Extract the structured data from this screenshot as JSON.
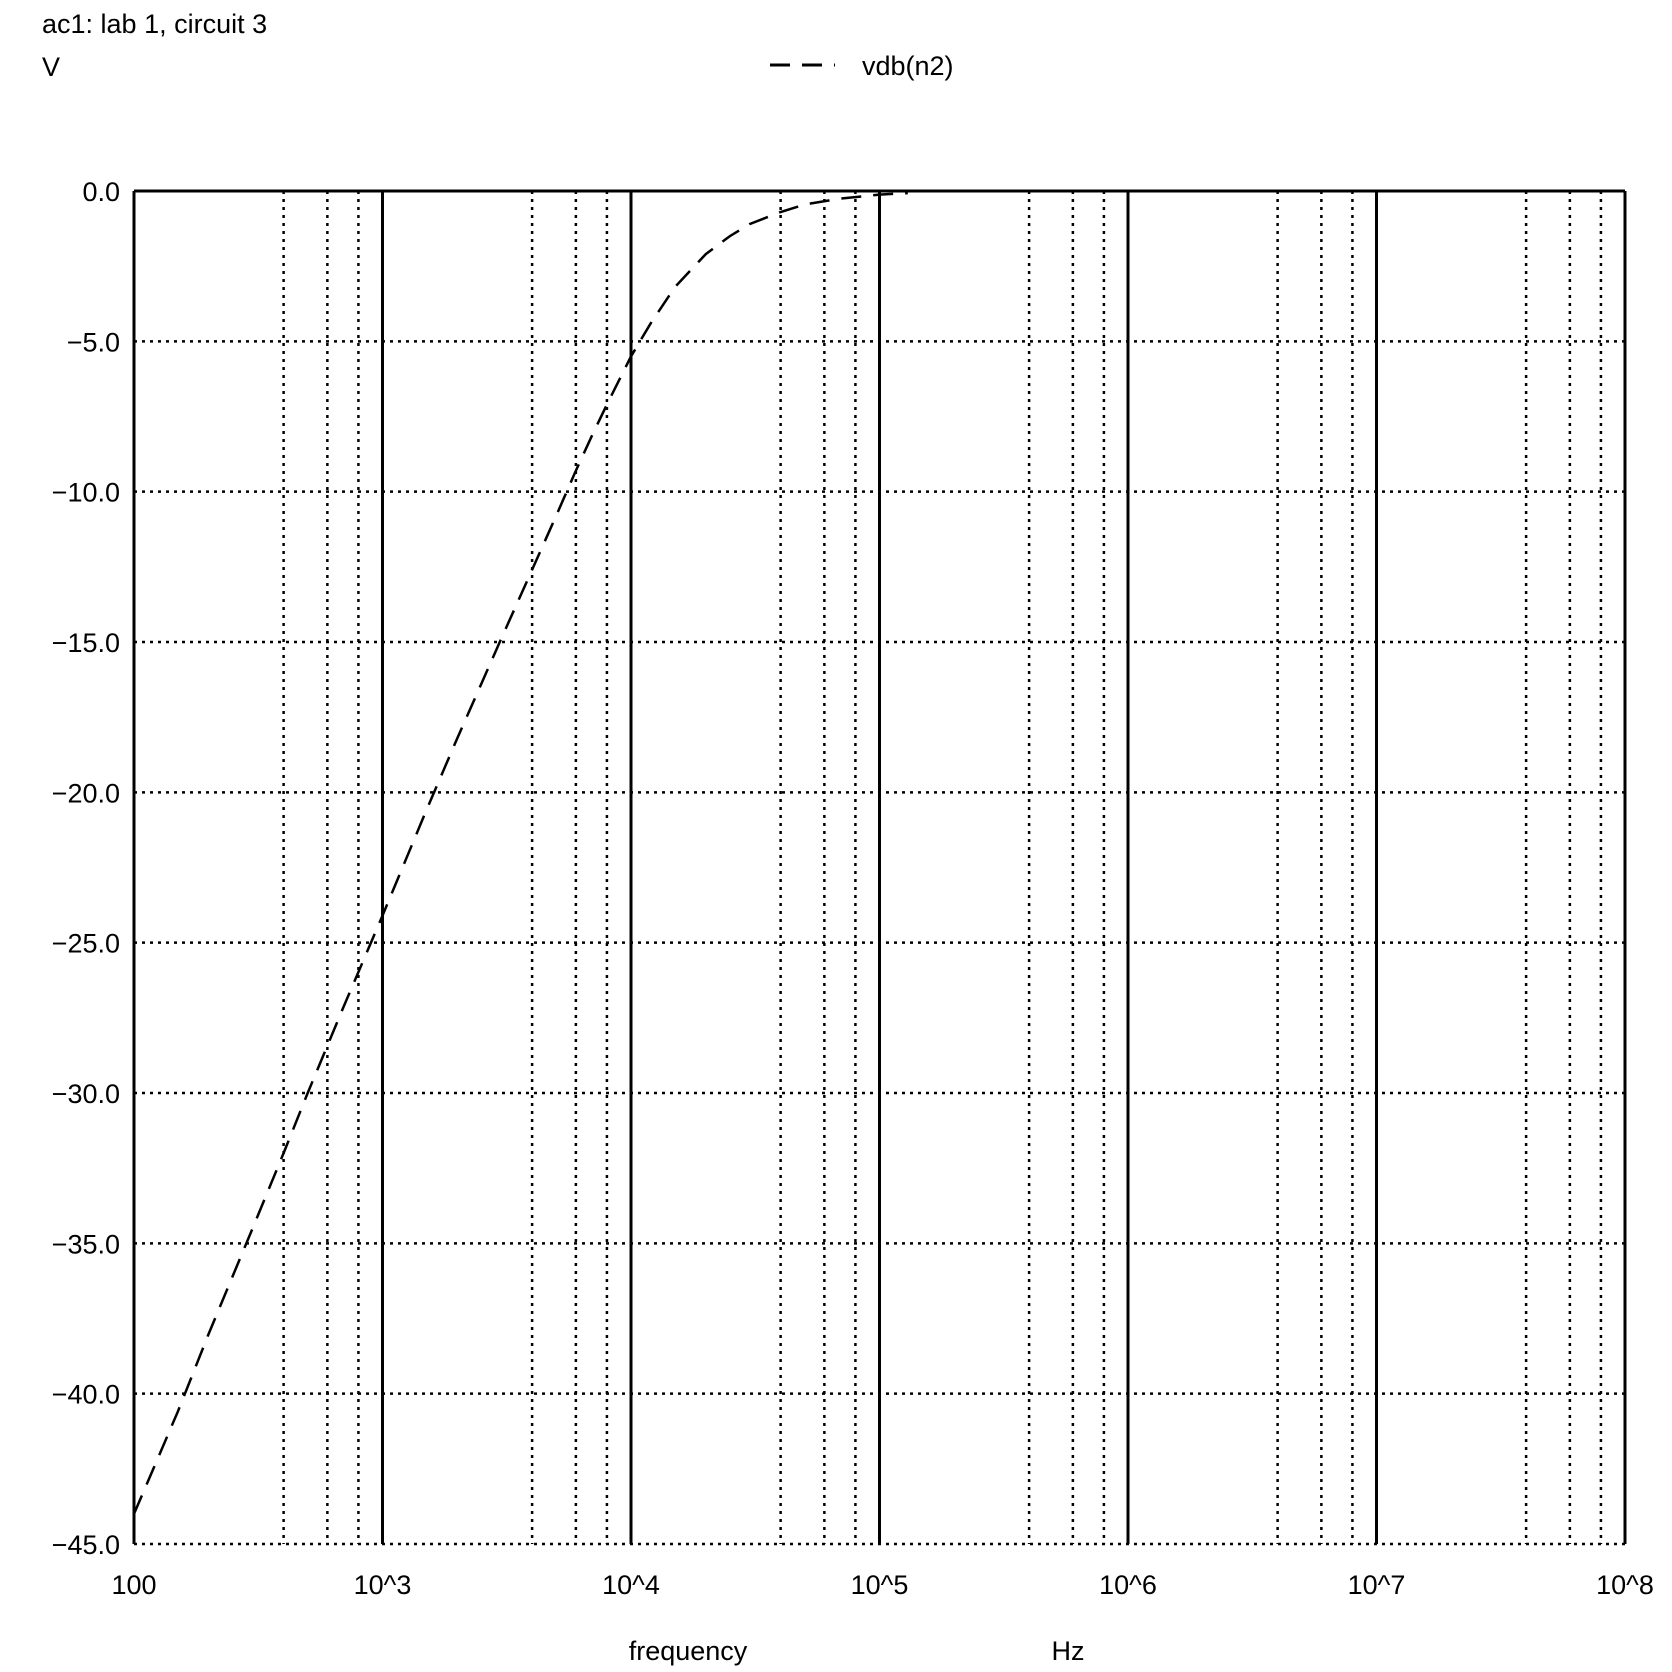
{
  "chart_data": {
    "type": "line",
    "title": "ac1: lab 1, circuit 3",
    "ylabel": "V",
    "xlabel": "frequency",
    "xunit": "Hz",
    "xscale": "log",
    "xlim": [
      100,
      100000000
    ],
    "ylim": [
      -45,
      0
    ],
    "grid": true,
    "legend_position": "top-center",
    "xticks": [
      {
        "value": 100,
        "label": "100"
      },
      {
        "value": 1000,
        "label": "10^3"
      },
      {
        "value": 10000,
        "label": "10^4"
      },
      {
        "value": 100000,
        "label": "10^5"
      },
      {
        "value": 1000000,
        "label": "10^6"
      },
      {
        "value": 10000000,
        "label": "10^7"
      },
      {
        "value": 100000000,
        "label": "10^8"
      }
    ],
    "yticks": [
      {
        "value": 0,
        "label": "0.0"
      },
      {
        "value": -5,
        "label": "−5.0"
      },
      {
        "value": -10,
        "label": "−10.0"
      },
      {
        "value": -15,
        "label": "−15.0"
      },
      {
        "value": -20,
        "label": "−20.0"
      },
      {
        "value": -25,
        "label": "−25.0"
      },
      {
        "value": -30,
        "label": "−30.0"
      },
      {
        "value": -35,
        "label": "−35.0"
      },
      {
        "value": -40,
        "label": "−40.0"
      },
      {
        "value": -45,
        "label": "−45.0"
      }
    ],
    "series": [
      {
        "name": "vdb(n2)",
        "style": "dashed",
        "color": "#000000",
        "x": [
          100,
          150,
          200,
          300,
          400,
          500,
          700,
          1000,
          1500,
          2000,
          3000,
          4000,
          5000,
          6000,
          7000,
          8000,
          10000,
          12000,
          15000,
          20000,
          25000,
          30000,
          40000,
          50000,
          70000,
          100000,
          130000
        ],
        "y": [
          -44.0,
          -40.6,
          -38.0,
          -34.5,
          -32.0,
          -30.0,
          -27.1,
          -24.1,
          -20.6,
          -18.2,
          -14.9,
          -12.6,
          -10.8,
          -9.3,
          -8.1,
          -7.1,
          -5.5,
          -4.4,
          -3.2,
          -2.1,
          -1.5,
          -1.1,
          -0.7,
          -0.45,
          -0.25,
          -0.12,
          -0.07
        ]
      }
    ]
  }
}
